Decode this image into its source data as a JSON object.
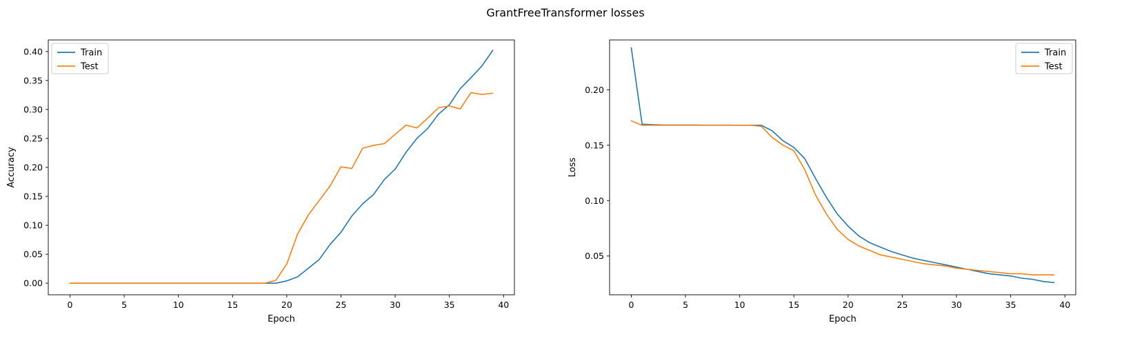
{
  "figure": {
    "suptitle": "GrantFreeTransformer losses"
  },
  "colors": {
    "train": "#1f77b4",
    "test": "#ff7f0e"
  },
  "chart_data": [
    {
      "type": "line",
      "title": "",
      "xlabel": "Epoch",
      "ylabel": "Accuracy",
      "xlim": [
        -2,
        41
      ],
      "ylim": [
        -0.02,
        0.42
      ],
      "xticks": [
        0,
        5,
        10,
        15,
        20,
        25,
        30,
        35,
        40
      ],
      "xtick_labels": [
        "0",
        "5",
        "10",
        "15",
        "20",
        "25",
        "30",
        "35",
        "40"
      ],
      "yticks": [
        0.0,
        0.05,
        0.1,
        0.15,
        0.2,
        0.25,
        0.3,
        0.35,
        0.4
      ],
      "ytick_labels": [
        "0.00",
        "0.05",
        "0.10",
        "0.15",
        "0.20",
        "0.25",
        "0.30",
        "0.35",
        "0.40"
      ],
      "grid": false,
      "legend": "upper-left",
      "x": [
        0,
        1,
        2,
        3,
        4,
        5,
        6,
        7,
        8,
        9,
        10,
        11,
        12,
        13,
        14,
        15,
        16,
        17,
        18,
        19,
        20,
        21,
        22,
        23,
        24,
        25,
        26,
        27,
        28,
        29,
        30,
        31,
        32,
        33,
        34,
        35,
        36,
        37,
        38,
        39
      ],
      "series": [
        {
          "name": "Train",
          "values": [
            0,
            0,
            0,
            0,
            0,
            0,
            0,
            0,
            0,
            0,
            0,
            0,
            0,
            0,
            0,
            0,
            0,
            0,
            0,
            0,
            0.004,
            0.011,
            0.026,
            0.041,
            0.067,
            0.088,
            0.116,
            0.137,
            0.153,
            0.179,
            0.197,
            0.226,
            0.25,
            0.267,
            0.292,
            0.308,
            0.336,
            0.355,
            0.375,
            0.402
          ]
        },
        {
          "name": "Test",
          "values": [
            0,
            0,
            0,
            0,
            0,
            0,
            0,
            0,
            0,
            0,
            0,
            0,
            0,
            0,
            0,
            0,
            0,
            0,
            0,
            0.005,
            0.033,
            0.085,
            0.118,
            0.143,
            0.168,
            0.201,
            0.198,
            0.233,
            0.238,
            0.241,
            0.257,
            0.273,
            0.268,
            0.285,
            0.303,
            0.306,
            0.301,
            0.329,
            0.326,
            0.328
          ]
        }
      ]
    },
    {
      "type": "line",
      "title": "",
      "xlabel": "Epoch",
      "ylabel": "Loss",
      "xlim": [
        -2,
        41
      ],
      "ylim": [
        0.015,
        0.245
      ],
      "xticks": [
        0,
        5,
        10,
        15,
        20,
        25,
        30,
        35,
        40
      ],
      "xtick_labels": [
        "0",
        "5",
        "10",
        "15",
        "20",
        "25",
        "30",
        "35",
        "40"
      ],
      "yticks": [
        0.05,
        0.1,
        0.15,
        0.2
      ],
      "ytick_labels": [
        "0.05",
        "0.10",
        "0.15",
        "0.20"
      ],
      "grid": false,
      "legend": "upper-right",
      "x": [
        0,
        1,
        2,
        3,
        4,
        5,
        6,
        7,
        8,
        9,
        10,
        11,
        12,
        13,
        14,
        15,
        16,
        17,
        18,
        19,
        20,
        21,
        22,
        23,
        24,
        25,
        26,
        27,
        28,
        29,
        30,
        31,
        32,
        33,
        34,
        35,
        36,
        37,
        38,
        39
      ],
      "series": [
        {
          "name": "Train",
          "values": [
            0.238,
            0.169,
            0.1685,
            0.1682,
            0.1682,
            0.1682,
            0.1682,
            0.1681,
            0.1681,
            0.1681,
            0.168,
            0.168,
            0.168,
            0.163,
            0.154,
            0.148,
            0.138,
            0.12,
            0.103,
            0.088,
            0.077,
            0.068,
            0.062,
            0.058,
            0.054,
            0.051,
            0.048,
            0.046,
            0.044,
            0.042,
            0.04,
            0.038,
            0.036,
            0.034,
            0.033,
            0.032,
            0.03,
            0.029,
            0.027,
            0.026
          ]
        },
        {
          "name": "Test",
          "values": [
            0.172,
            0.168,
            0.168,
            0.168,
            0.168,
            0.168,
            0.168,
            0.168,
            0.168,
            0.168,
            0.168,
            0.168,
            0.167,
            0.157,
            0.15,
            0.145,
            0.128,
            0.105,
            0.088,
            0.074,
            0.065,
            0.059,
            0.055,
            0.051,
            0.049,
            0.047,
            0.045,
            0.043,
            0.042,
            0.041,
            0.039,
            0.038,
            0.037,
            0.036,
            0.035,
            0.034,
            0.034,
            0.033,
            0.033,
            0.033
          ]
        }
      ]
    }
  ]
}
